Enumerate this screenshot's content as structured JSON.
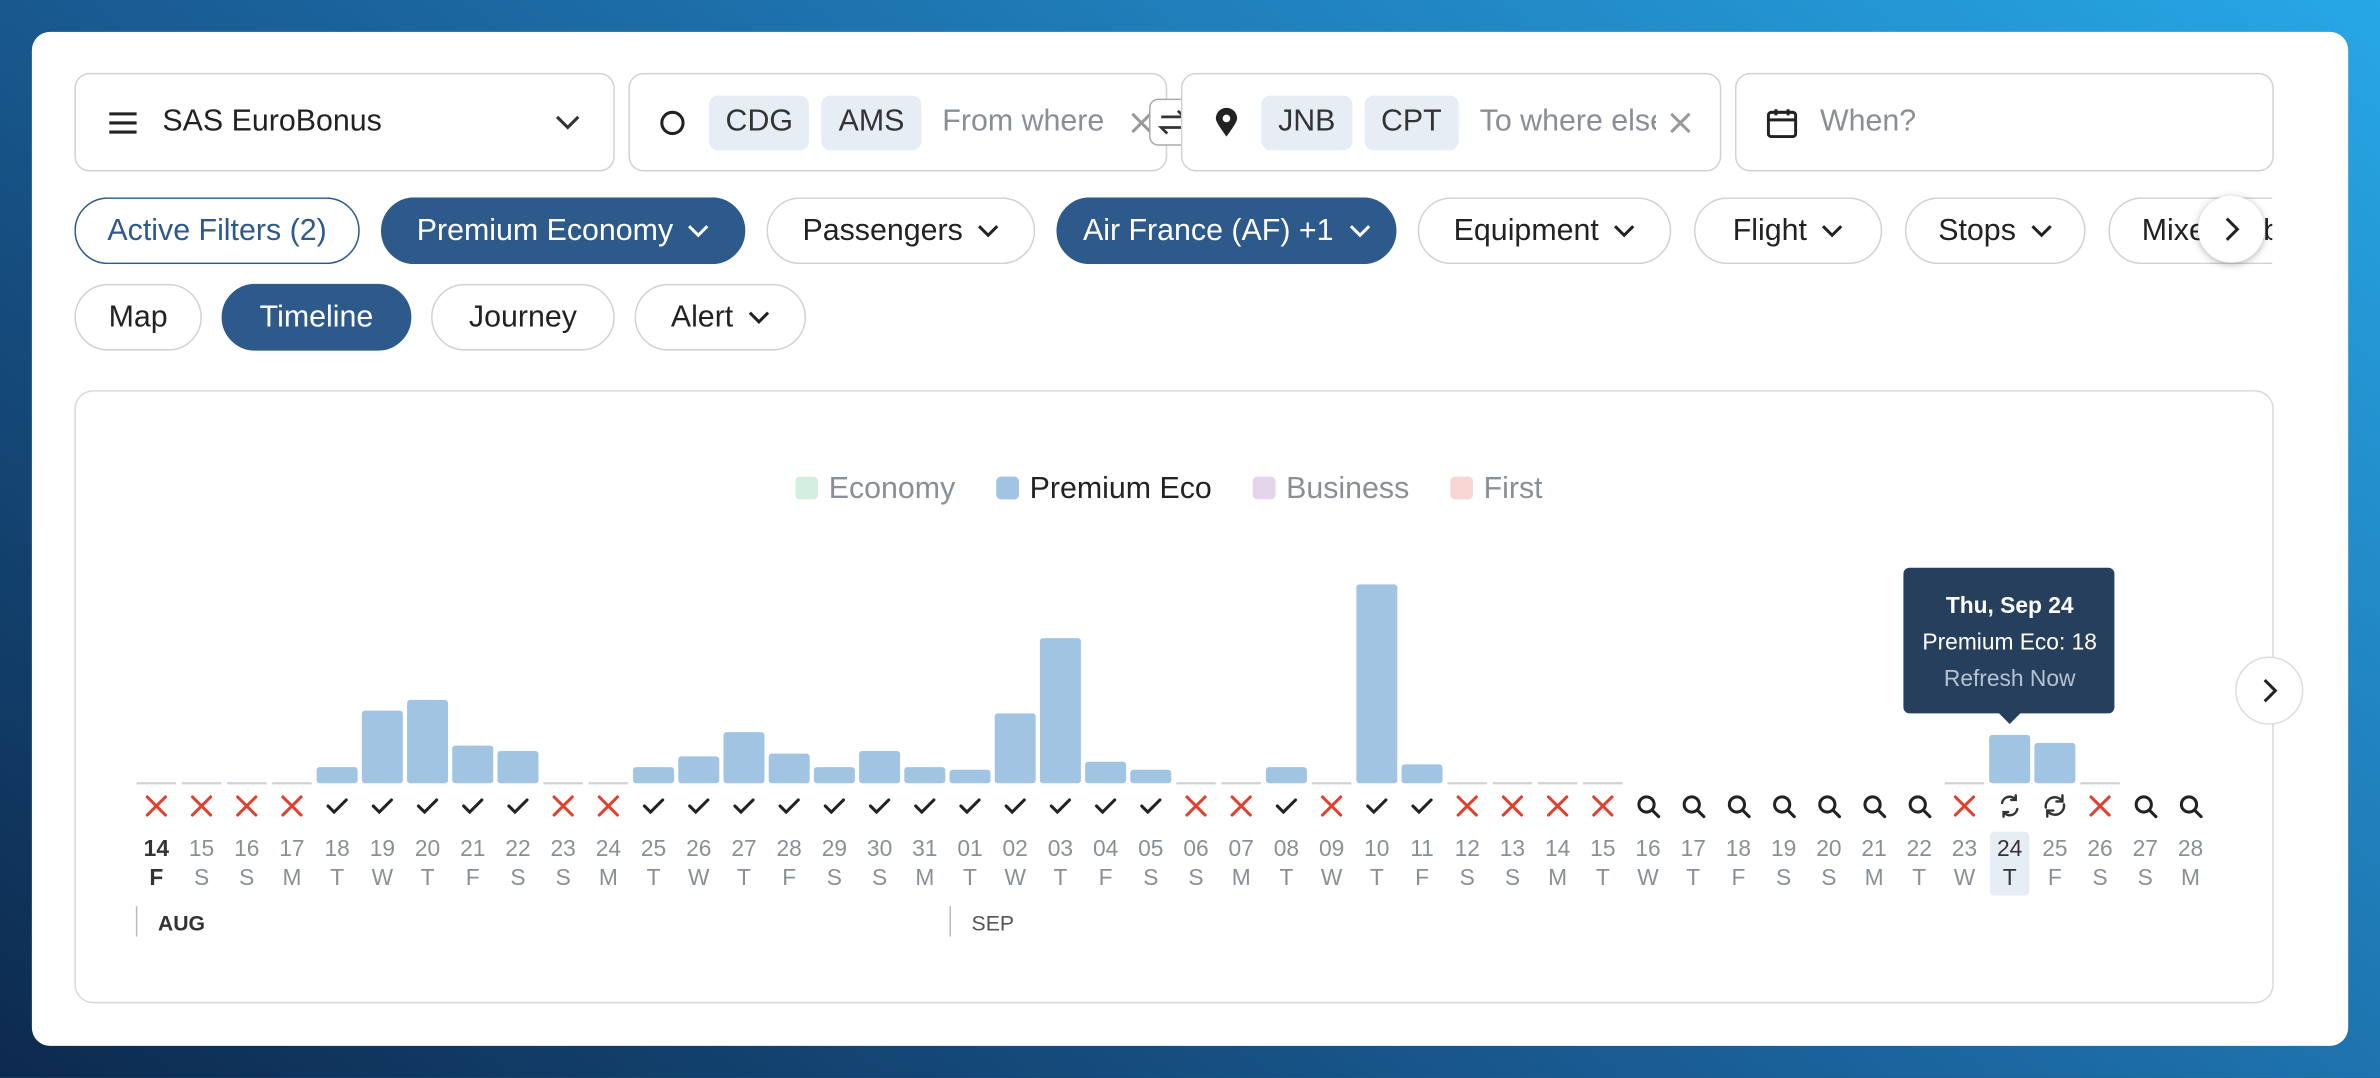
{
  "search": {
    "program": "SAS EuroBonus",
    "origins": [
      "CDG",
      "AMS"
    ],
    "origin_placeholder": "From where",
    "destinations": [
      "JNB",
      "CPT"
    ],
    "destination_placeholder": "To where else?",
    "date_placeholder": "When?"
  },
  "filters": [
    "Active Filters (2)",
    "Premium Economy",
    "Passengers",
    "Air France (AF) +1",
    "Equipment",
    "Flight",
    "Stops",
    "Mixed cabin"
  ],
  "views": [
    "Map",
    "Timeline",
    "Journey",
    "Alert"
  ],
  "chart_data": {
    "type": "bar",
    "legend": [
      {
        "name": "Economy",
        "color": "#d3efe2"
      },
      {
        "name": "Premium Eco",
        "color": "#a0c4e2"
      },
      {
        "name": "Business",
        "color": "#e4d5eb"
      },
      {
        "name": "First",
        "color": "#f7d6d4"
      }
    ],
    "categories": [
      "14",
      "15",
      "16",
      "17",
      "18",
      "19",
      "20",
      "21",
      "22",
      "23",
      "24",
      "25",
      "26",
      "27",
      "28",
      "29",
      "30",
      "31",
      "01",
      "02",
      "03",
      "04",
      "05",
      "06",
      "07",
      "08",
      "09",
      "10",
      "11",
      "12",
      "13",
      "14",
      "15",
      "16",
      "17",
      "18",
      "19",
      "20",
      "21",
      "22",
      "23",
      "24",
      "25",
      "26",
      "27",
      "28"
    ],
    "weekdays": [
      "F",
      "S",
      "S",
      "M",
      "T",
      "W",
      "T",
      "F",
      "S",
      "S",
      "M",
      "T",
      "W",
      "T",
      "F",
      "S",
      "S",
      "M",
      "T",
      "W",
      "T",
      "F",
      "S",
      "S",
      "M",
      "T",
      "W",
      "T",
      "F",
      "S",
      "S",
      "M",
      "T",
      "W",
      "T",
      "F",
      "S",
      "S",
      "M",
      "T",
      "W",
      "T",
      "F",
      "S",
      "S",
      "M"
    ],
    "status": [
      "x",
      "x",
      "x",
      "x",
      "check",
      "check",
      "check",
      "check",
      "check",
      "x",
      "x",
      "check",
      "check",
      "check",
      "check",
      "check",
      "check",
      "check",
      "check",
      "check",
      "check",
      "check",
      "check",
      "x",
      "x",
      "check",
      "x",
      "check",
      "check",
      "x",
      "x",
      "x",
      "x",
      "search",
      "search",
      "search",
      "search",
      "search",
      "search",
      "search",
      "x",
      "refresh",
      "sync",
      "x",
      "search",
      "search"
    ],
    "series": [
      {
        "name": "Premium Eco",
        "color": "#a0c4e2",
        "values": [
          0,
          0,
          0,
          0,
          6,
          27,
          31,
          14,
          12,
          0,
          0,
          6,
          10,
          19,
          11,
          6,
          12,
          6,
          5,
          26,
          54,
          8,
          5,
          0,
          0,
          6,
          0,
          74,
          7,
          0,
          0,
          0,
          0,
          null,
          null,
          null,
          null,
          null,
          null,
          null,
          0,
          18,
          15,
          0,
          null,
          null
        ]
      }
    ],
    "months": [
      "AUG",
      "SEP"
    ],
    "tooltip": {
      "title": "Thu, Sep 24",
      "text": "Premium Eco: 18",
      "action": "Refresh Now"
    }
  }
}
